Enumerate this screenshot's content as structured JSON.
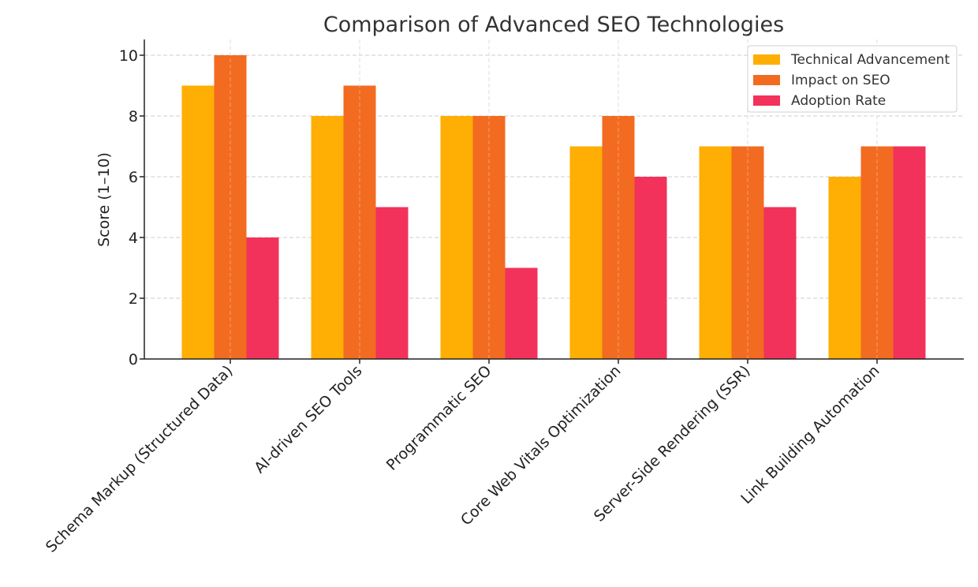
{
  "chart_data": {
    "type": "bar",
    "title": "Comparison of Advanced SEO Technologies",
    "xlabel": "",
    "ylabel": "Score (1–10)",
    "ylim": [
      0,
      10.5
    ],
    "yticks": [
      0,
      2,
      4,
      6,
      8,
      10
    ],
    "grid": true,
    "legend_position": "top-right",
    "categories": [
      "Schema Markup (Structured Data)",
      "AI-driven SEO Tools",
      "Programmatic SEO",
      "Core Web Vitals Optimization",
      "Server-Side Rendering (SSR)",
      "Link Building Automation"
    ],
    "series": [
      {
        "name": "Technical Advancement",
        "color": "#FFAE03",
        "values": [
          9,
          8,
          8,
          7,
          7,
          6
        ]
      },
      {
        "name": "Impact on SEO",
        "color": "#F26B21",
        "values": [
          10,
          9,
          8,
          8,
          7,
          7
        ]
      },
      {
        "name": "Adoption Rate",
        "color": "#F2325A",
        "values": [
          4,
          5,
          3,
          6,
          5,
          7
        ]
      }
    ]
  }
}
